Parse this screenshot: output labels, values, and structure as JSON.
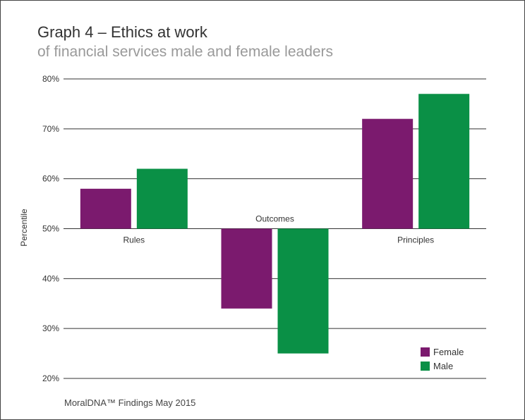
{
  "title": "Graph 4 – Ethics at work",
  "subtitle": "of financial services male and female leaders",
  "source": "MoralDNA™ Findings May 2015",
  "chart_data": {
    "type": "bar",
    "baseline": 50,
    "categories": [
      "Rules",
      "Outcomes",
      "Principles"
    ],
    "series": [
      {
        "name": "Female",
        "color": "#7b1a6e",
        "values": [
          58,
          34,
          72
        ]
      },
      {
        "name": "Male",
        "color": "#0a9046",
        "values": [
          62,
          25,
          77
        ]
      }
    ],
    "ylabel": "Percentile",
    "xlabel": "",
    "ylim": [
      20,
      80
    ],
    "yticks": [
      20,
      30,
      40,
      50,
      60,
      70,
      80
    ],
    "ytick_labels": [
      "20%",
      "30%",
      "40%",
      "50%",
      "60%",
      "70%",
      "80%"
    ],
    "grid": true,
    "legend": "bottom-right"
  }
}
